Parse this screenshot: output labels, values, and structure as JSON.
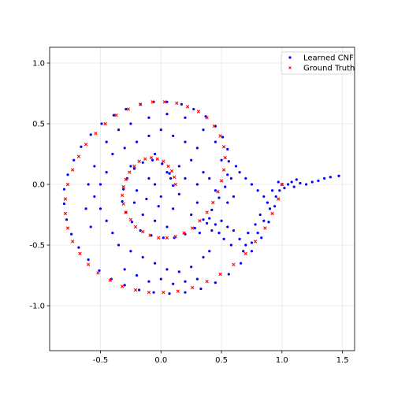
{
  "chart_data": {
    "type": "scatter",
    "title": "",
    "xlabel": "",
    "ylabel": "",
    "xlim": [
      -0.92,
      1.6
    ],
    "ylim": [
      -1.37,
      1.13
    ],
    "xticks": [
      "-0.5",
      "0.0",
      "0.5",
      "1.0",
      "1.5"
    ],
    "xtick_values": [
      -0.5,
      0.0,
      0.5,
      1.0,
      1.5
    ],
    "yticks": [
      "-1.0",
      "-0.5",
      "0.0",
      "0.5",
      "1.0"
    ],
    "ytick_values": [
      -1.0,
      -0.5,
      0.0,
      0.5,
      1.0
    ],
    "grid": true,
    "legend_position": "upper right",
    "series": [
      {
        "name": "Learned CNF",
        "color": "#0000ff",
        "marker": "circle",
        "points": [
          [
            0.1,
            -0.01
          ],
          [
            0.07,
            0.09
          ],
          [
            0.01,
            0.17
          ],
          [
            -0.07,
            0.2
          ],
          [
            -0.15,
            0.18
          ],
          [
            -0.22,
            0.13
          ],
          [
            -0.28,
            0.05
          ],
          [
            -0.31,
            -0.04
          ],
          [
            -0.32,
            -0.14
          ],
          [
            -0.29,
            -0.23
          ],
          [
            -0.24,
            -0.31
          ],
          [
            -0.17,
            -0.38
          ],
          [
            -0.08,
            -0.42
          ],
          [
            0.02,
            -0.44
          ],
          [
            0.11,
            -0.44
          ],
          [
            0.2,
            -0.41
          ],
          [
            0.28,
            -0.36
          ],
          [
            0.35,
            -0.29
          ],
          [
            0.42,
            -0.21
          ],
          [
            0.48,
            -0.11
          ],
          [
            0.53,
            -0.02
          ],
          [
            0.55,
            0.08
          ],
          [
            0.56,
            0.19
          ],
          [
            0.55,
            0.29
          ],
          [
            0.51,
            0.39
          ],
          [
            0.45,
            0.48
          ],
          [
            0.37,
            0.56
          ],
          [
            0.27,
            0.62
          ],
          [
            0.17,
            0.66
          ],
          [
            0.05,
            0.68
          ],
          [
            -0.06,
            0.68
          ],
          [
            -0.17,
            0.66
          ],
          [
            -0.29,
            0.62
          ],
          [
            -0.39,
            0.57
          ],
          [
            -0.49,
            0.5
          ],
          [
            -0.58,
            0.41
          ],
          [
            -0.66,
            0.31
          ],
          [
            -0.72,
            0.2
          ],
          [
            -0.77,
            0.08
          ],
          [
            -0.8,
            -0.04
          ],
          [
            -0.8,
            -0.16
          ],
          [
            -0.78,
            -0.29
          ],
          [
            -0.74,
            -0.41
          ],
          [
            -0.68,
            -0.52
          ],
          [
            -0.6,
            -0.62
          ],
          [
            -0.51,
            -0.71
          ],
          [
            -0.41,
            -0.78
          ],
          [
            -0.3,
            -0.83
          ],
          [
            -0.18,
            -0.87
          ],
          [
            -0.06,
            -0.89
          ],
          [
            0.07,
            -0.9
          ],
          [
            0.2,
            -0.89
          ],
          [
            0.33,
            -0.86
          ],
          [
            0.45,
            -0.81
          ],
          [
            0.56,
            -0.74
          ],
          [
            0.66,
            -0.65
          ],
          [
            0.75,
            -0.55
          ],
          [
            0.83,
            -0.44
          ],
          [
            0.89,
            -0.31
          ],
          [
            0.94,
            -0.18
          ],
          [
            0.98,
            -0.05
          ],
          [
            1.0,
            0.0
          ],
          [
            0.05,
            0.1
          ],
          [
            -0.05,
            0.25
          ],
          [
            -0.1,
            0.05
          ],
          [
            -0.2,
            -0.05
          ],
          [
            -0.25,
            0.15
          ],
          [
            0.0,
            -0.1
          ],
          [
            0.1,
            -0.2
          ],
          [
            -0.15,
            -0.25
          ],
          [
            -0.05,
            -0.3
          ],
          [
            0.05,
            -0.35
          ],
          [
            0.25,
            -0.25
          ],
          [
            0.3,
            -0.15
          ],
          [
            0.4,
            -0.28
          ],
          [
            0.45,
            -0.33
          ],
          [
            0.5,
            -0.3
          ],
          [
            0.55,
            -0.35
          ],
          [
            0.6,
            -0.38
          ],
          [
            0.65,
            -0.45
          ],
          [
            0.7,
            -0.5
          ],
          [
            0.75,
            -0.48
          ],
          [
            0.8,
            -0.4
          ],
          [
            0.85,
            -0.3
          ],
          [
            0.9,
            -0.2
          ],
          [
            0.95,
            -0.1
          ],
          [
            1.05,
            0.0
          ],
          [
            1.1,
            -0.02
          ],
          [
            1.15,
            0.01
          ],
          [
            1.2,
            0.0
          ],
          [
            1.25,
            0.02
          ],
          [
            1.3,
            0.03
          ],
          [
            1.35,
            0.05
          ],
          [
            1.4,
            0.06
          ],
          [
            1.47,
            0.07
          ],
          [
            0.85,
            -0.1
          ],
          [
            0.8,
            -0.05
          ],
          [
            0.75,
            0.0
          ],
          [
            0.7,
            0.05
          ],
          [
            0.65,
            0.1
          ],
          [
            0.62,
            0.15
          ],
          [
            0.58,
            0.05
          ],
          [
            0.6,
            -0.1
          ],
          [
            0.55,
            -0.15
          ],
          [
            0.45,
            -0.05
          ],
          [
            0.4,
            0.05
          ],
          [
            0.35,
            0.1
          ],
          [
            0.3,
            0.0
          ],
          [
            0.2,
            0.05
          ],
          [
            0.15,
            0.15
          ],
          [
            0.25,
            0.2
          ],
          [
            0.3,
            0.3
          ],
          [
            0.2,
            0.35
          ],
          [
            0.1,
            0.4
          ],
          [
            0.0,
            0.45
          ],
          [
            -0.1,
            0.4
          ],
          [
            -0.2,
            0.35
          ],
          [
            -0.3,
            0.3
          ],
          [
            -0.4,
            0.25
          ],
          [
            -0.45,
            0.1
          ],
          [
            -0.5,
            0.0
          ],
          [
            -0.55,
            -0.1
          ],
          [
            -0.5,
            -0.2
          ],
          [
            -0.45,
            -0.3
          ],
          [
            -0.4,
            -0.4
          ],
          [
            -0.35,
            -0.5
          ],
          [
            -0.25,
            -0.55
          ],
          [
            -0.15,
            -0.6
          ],
          [
            -0.05,
            -0.65
          ],
          [
            0.05,
            -0.7
          ],
          [
            0.15,
            -0.72
          ],
          [
            0.25,
            -0.68
          ],
          [
            0.35,
            -0.6
          ],
          [
            0.4,
            -0.55
          ],
          [
            -0.3,
            -0.7
          ],
          [
            -0.2,
            -0.75
          ],
          [
            -0.1,
            -0.8
          ],
          [
            0.0,
            -0.78
          ],
          [
            0.1,
            -0.82
          ],
          [
            0.2,
            -0.8
          ],
          [
            0.3,
            -0.78
          ],
          [
            -0.55,
            0.15
          ],
          [
            -0.6,
            0.0
          ],
          [
            -0.62,
            -0.2
          ],
          [
            -0.58,
            -0.35
          ],
          [
            -0.45,
            0.35
          ],
          [
            -0.35,
            0.45
          ],
          [
            -0.25,
            0.5
          ],
          [
            -0.1,
            0.55
          ],
          [
            0.05,
            0.58
          ],
          [
            0.2,
            0.55
          ],
          [
            0.35,
            0.45
          ],
          [
            0.45,
            0.35
          ],
          [
            0.5,
            0.2
          ],
          [
            -0.05,
            0.0
          ],
          [
            -0.12,
            -0.12
          ],
          [
            0.08,
            0.05
          ],
          [
            0.15,
            -0.08
          ],
          [
            -0.02,
            -0.18
          ],
          [
            -0.22,
            -0.15
          ],
          [
            0.32,
            -0.4
          ],
          [
            0.38,
            -0.32
          ],
          [
            0.42,
            -0.38
          ],
          [
            0.48,
            -0.4
          ],
          [
            0.52,
            -0.45
          ],
          [
            0.58,
            -0.5
          ],
          [
            0.68,
            -0.55
          ],
          [
            0.72,
            -0.4
          ],
          [
            0.78,
            -0.33
          ],
          [
            0.82,
            -0.25
          ],
          [
            0.88,
            -0.15
          ],
          [
            0.92,
            -0.05
          ],
          [
            0.97,
            0.02
          ],
          [
            1.02,
            -0.03
          ],
          [
            1.08,
            0.02
          ],
          [
            1.12,
            0.04
          ]
        ]
      },
      {
        "name": "Ground Truth",
        "color": "#ff0000",
        "marker": "x",
        "points": [
          [
            0.12,
            0.0
          ],
          [
            0.11,
            0.06
          ],
          [
            0.09,
            0.11
          ],
          [
            0.06,
            0.15
          ],
          [
            0.02,
            0.19
          ],
          [
            -0.03,
            0.21
          ],
          [
            -0.08,
            0.22
          ],
          [
            -0.13,
            0.21
          ],
          [
            -0.18,
            0.19
          ],
          [
            -0.22,
            0.15
          ],
          [
            -0.26,
            0.1
          ],
          [
            -0.29,
            0.04
          ],
          [
            -0.31,
            -0.02
          ],
          [
            -0.32,
            -0.09
          ],
          [
            -0.31,
            -0.16
          ],
          [
            -0.29,
            -0.23
          ],
          [
            -0.25,
            -0.29
          ],
          [
            -0.21,
            -0.35
          ],
          [
            -0.15,
            -0.39
          ],
          [
            -0.09,
            -0.42
          ],
          [
            -0.02,
            -0.44
          ],
          [
            0.05,
            -0.44
          ],
          [
            0.12,
            -0.43
          ],
          [
            0.19,
            -0.4
          ],
          [
            0.26,
            -0.36
          ],
          [
            0.32,
            -0.3
          ],
          [
            0.38,
            -0.23
          ],
          [
            0.43,
            -0.15
          ],
          [
            0.47,
            -0.06
          ],
          [
            0.5,
            0.03
          ],
          [
            0.52,
            0.12
          ],
          [
            0.53,
            0.22
          ],
          [
            0.52,
            0.31
          ],
          [
            0.49,
            0.4
          ],
          [
            0.44,
            0.48
          ],
          [
            0.38,
            0.55
          ],
          [
            0.31,
            0.6
          ],
          [
            0.22,
            0.64
          ],
          [
            0.13,
            0.67
          ],
          [
            0.03,
            0.68
          ],
          [
            -0.07,
            0.68
          ],
          [
            -0.17,
            0.66
          ],
          [
            -0.27,
            0.62
          ],
          [
            -0.37,
            0.57
          ],
          [
            -0.46,
            0.5
          ],
          [
            -0.54,
            0.42
          ],
          [
            -0.62,
            0.33
          ],
          [
            -0.68,
            0.23
          ],
          [
            -0.73,
            0.12
          ],
          [
            -0.77,
            0.0
          ],
          [
            -0.79,
            -0.12
          ],
          [
            -0.79,
            -0.24
          ],
          [
            -0.77,
            -0.36
          ],
          [
            -0.73,
            -0.47
          ],
          [
            -0.67,
            -0.57
          ],
          [
            -0.6,
            -0.66
          ],
          [
            -0.52,
            -0.73
          ],
          [
            -0.42,
            -0.79
          ],
          [
            -0.32,
            -0.84
          ],
          [
            -0.21,
            -0.87
          ],
          [
            -0.1,
            -0.89
          ],
          [
            0.02,
            -0.89
          ],
          [
            0.14,
            -0.88
          ],
          [
            0.26,
            -0.85
          ],
          [
            0.38,
            -0.8
          ],
          [
            0.49,
            -0.74
          ],
          [
            0.6,
            -0.66
          ],
          [
            0.7,
            -0.57
          ],
          [
            0.78,
            -0.47
          ],
          [
            0.86,
            -0.36
          ],
          [
            0.92,
            -0.24
          ],
          [
            0.97,
            -0.12
          ],
          [
            1.0,
            0.0
          ]
        ]
      }
    ]
  },
  "legend": {
    "items": [
      {
        "label": "Learned CNF",
        "color": "#0000ff",
        "marker": "circle"
      },
      {
        "label": "Ground Truth",
        "color": "#ff0000",
        "marker": "x"
      }
    ]
  }
}
